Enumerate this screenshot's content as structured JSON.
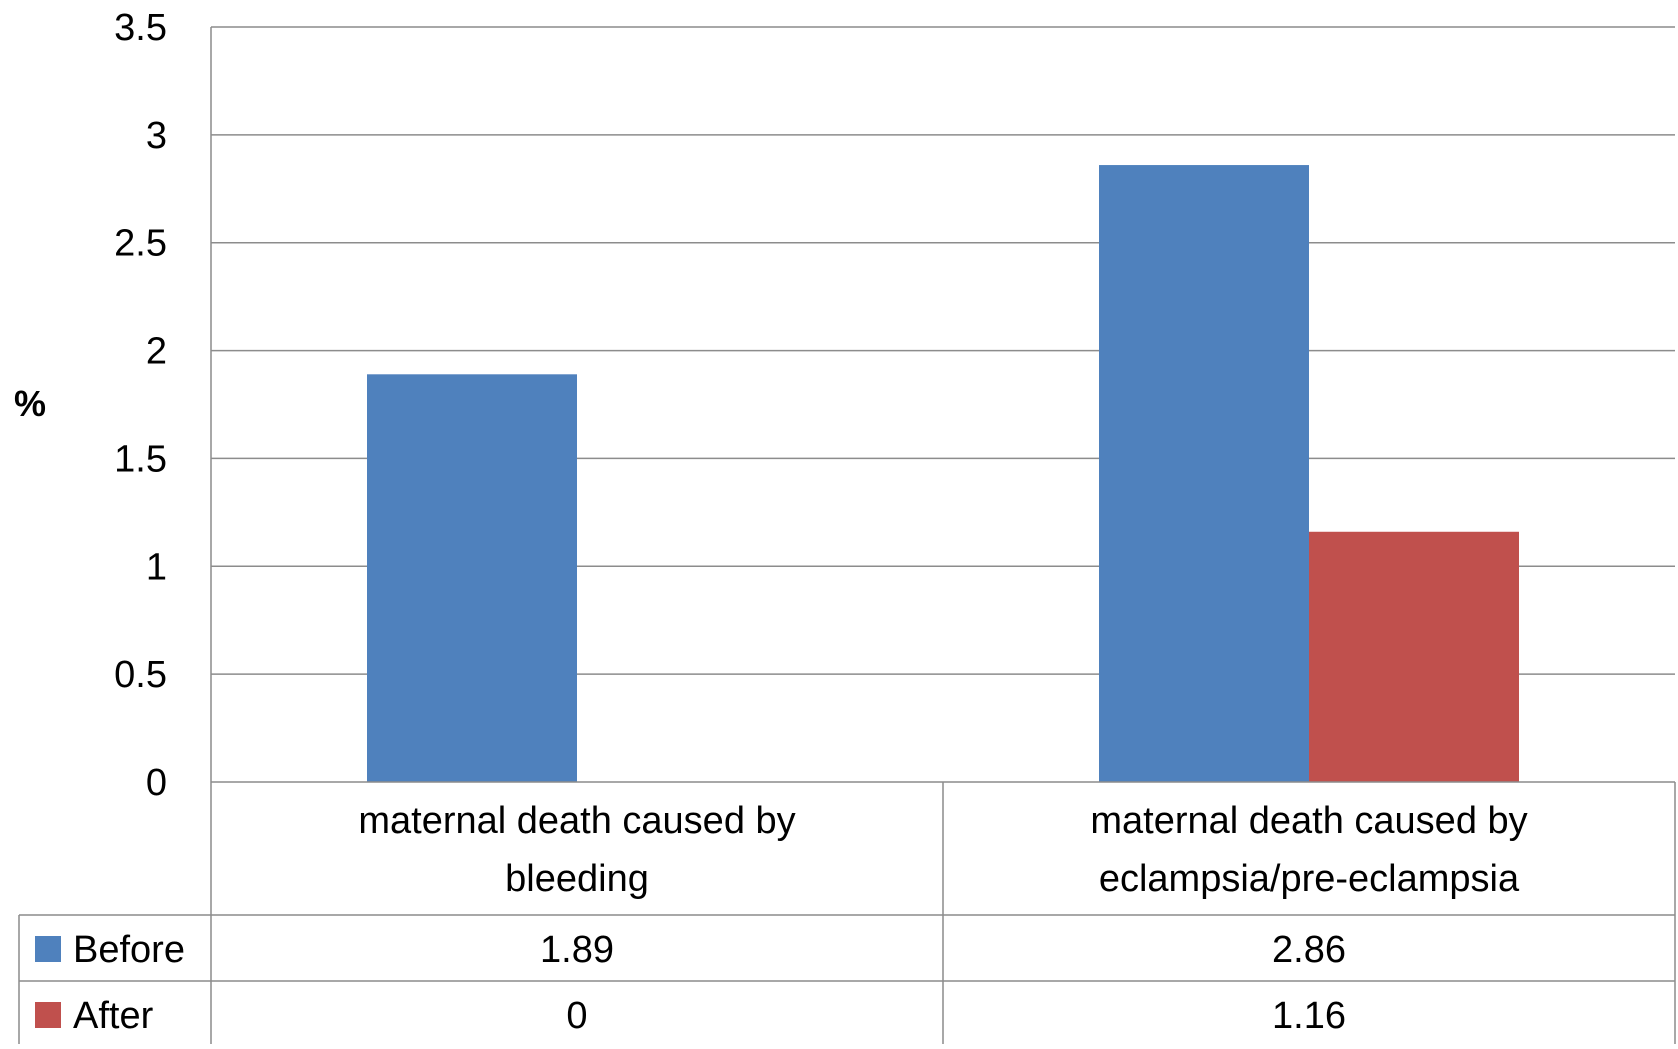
{
  "chart_data": {
    "type": "bar",
    "title": "",
    "xlabel": "",
    "ylabel": "%",
    "ylim": [
      0,
      3.5
    ],
    "yticks": [
      "0",
      "0.5",
      "1",
      "1.5",
      "2",
      "2.5",
      "3",
      "3.5"
    ],
    "grid": true,
    "legend": "data-table",
    "categories": [
      [
        "maternal death caused by",
        "bleeding"
      ],
      [
        "maternal death caused by",
        "eclampsia/pre-eclampsia"
      ]
    ],
    "series": [
      {
        "name": "Before",
        "values": [
          1.89,
          2.86
        ],
        "labels": [
          "1.89",
          "2.86"
        ],
        "color": "#4f81bd"
      },
      {
        "name": "After",
        "values": [
          0,
          1.16
        ],
        "labels": [
          "0",
          "1.16"
        ],
        "color": "#c0504d"
      }
    ]
  }
}
